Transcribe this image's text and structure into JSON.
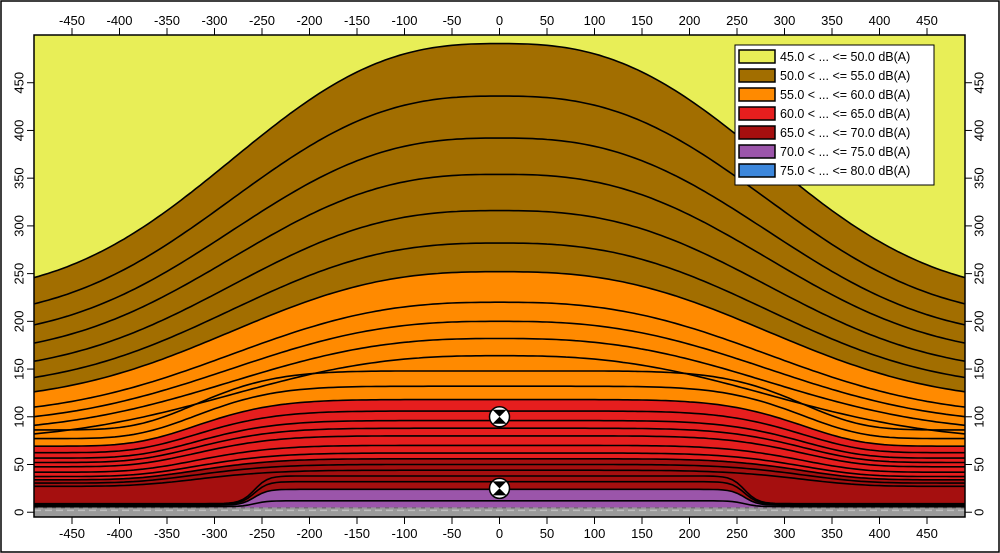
{
  "chart_data": {
    "type": "heatmap",
    "xlim": [
      -490,
      490
    ],
    "ylim": [
      -5,
      500
    ],
    "x_ticks": [
      "-450",
      "-400",
      "-350",
      "-300",
      "-250",
      "-200",
      "-150",
      "-100",
      "-50",
      "0",
      "50",
      "100",
      "150",
      "200",
      "250",
      "300",
      "350",
      "400",
      "450"
    ],
    "y_ticks": [
      "0",
      "50",
      "100",
      "150",
      "200",
      "250",
      "300",
      "350",
      "400",
      "450"
    ],
    "legend": [
      {
        "label": "45.0 < ... <= 50.0 dB(A)",
        "color": "#E8EE57"
      },
      {
        "label": "50.0 < ... <= 55.0 dB(A)",
        "color": "#A26E00"
      },
      {
        "label": "55.0 < ... <= 60.0 dB(A)",
        "color": "#FF8A00"
      },
      {
        "label": "60.0 < ... <= 65.0 dB(A)",
        "color": "#E61E1E"
      },
      {
        "label": "65.0 < ... <= 70.0 dB(A)",
        "color": "#A50F0F"
      },
      {
        "label": "70.0 < ... <= 75.0 dB(A)",
        "color": "#9B55AA"
      },
      {
        "label": "75.0 < ... <= 80.0 dB(A)",
        "color": "#3C87DC"
      }
    ],
    "sources": [
      {
        "name": "source",
        "x": 0,
        "y": 100
      },
      {
        "name": "source",
        "x": 0,
        "y": 25
      }
    ],
    "isolines_y_at_center": [
      12,
      24,
      32,
      38,
      44,
      50,
      56,
      62,
      70,
      80,
      88,
      96,
      106,
      118,
      132,
      148,
      164,
      182,
      200,
      220,
      252,
      282,
      316,
      354,
      392,
      436,
      491
    ]
  }
}
